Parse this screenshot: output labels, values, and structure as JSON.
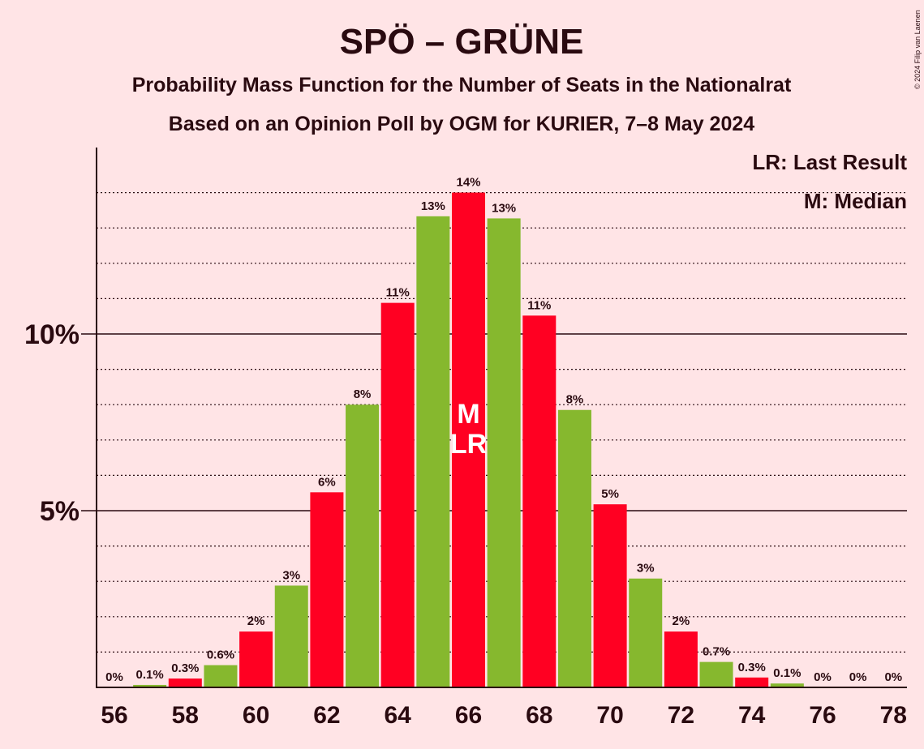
{
  "title": "SPÖ – GRÜNE",
  "subtitle1": "Probability Mass Function for the Number of Seats in the Nationalrat",
  "subtitle2": "Based on an Opinion Poll by OGM for KURIER, 7–8 May 2024",
  "copyright": "© 2024 Filip van Laenen",
  "legend": {
    "last_result": "LR: Last Result",
    "median": "M: Median"
  },
  "colors": {
    "background": "#FFE4E6",
    "red": "#FF0022",
    "green": "#86B82E",
    "text": "#2a0a10"
  },
  "chart_data": {
    "type": "bar",
    "categories": [
      56,
      57,
      58,
      59,
      60,
      61,
      62,
      63,
      64,
      65,
      66,
      67,
      68,
      69,
      70,
      71,
      72,
      73,
      74,
      75,
      76,
      77,
      78
    ],
    "values": [
      0,
      0.07,
      0.25,
      0.63,
      1.58,
      2.88,
      5.52,
      8.0,
      10.88,
      13.33,
      14.0,
      13.27,
      10.52,
      7.85,
      5.18,
      3.08,
      1.58,
      0.72,
      0.28,
      0.11,
      0,
      0,
      0
    ],
    "labels": [
      "0%",
      "0.1%",
      "0.3%",
      "0.6%",
      "2%",
      "3%",
      "6%",
      "8%",
      "11%",
      "13%",
      "14%",
      "13%",
      "11%",
      "8%",
      "5%",
      "3%",
      "2%",
      "0.7%",
      "0.3%",
      "0.1%",
      "0%",
      "0%",
      "0%"
    ],
    "bar_colors": [
      "red",
      "green",
      "red",
      "green",
      "red",
      "green",
      "red",
      "green",
      "red",
      "green",
      "red",
      "green",
      "red",
      "green",
      "red",
      "green",
      "red",
      "green",
      "red",
      "green",
      "red",
      "green",
      "red"
    ],
    "x_tick_labels": [
      "56",
      "58",
      "60",
      "62",
      "64",
      "66",
      "68",
      "70",
      "72",
      "74",
      "76",
      "78"
    ],
    "y_ticks": [
      {
        "value": 5,
        "label": "5%"
      },
      {
        "value": 10,
        "label": "10%"
      }
    ],
    "ylim": [
      0,
      15.3
    ],
    "grid": "dotted every 1%, solid at 5% and 10%",
    "median_seat": 66,
    "last_result_seat": 66,
    "median_marker": "M",
    "last_result_marker": "LR"
  }
}
